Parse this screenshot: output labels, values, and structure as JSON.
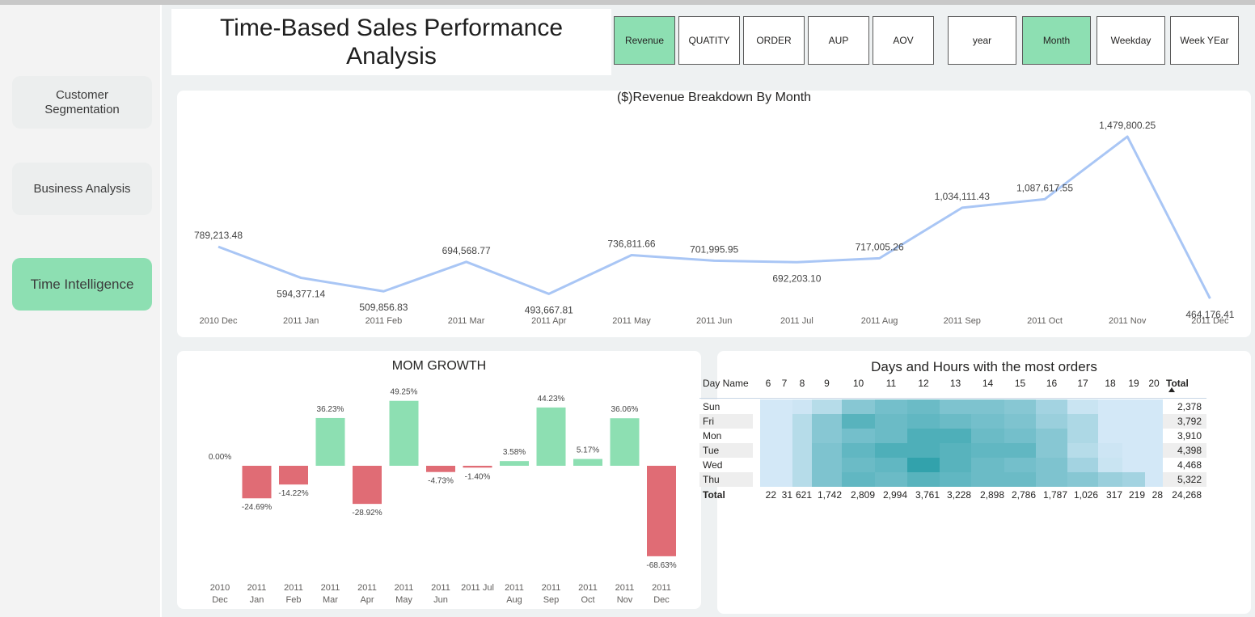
{
  "nav": {
    "items": [
      {
        "label_line1": "Customer",
        "label_line2": "Segmentation"
      },
      {
        "label_line1": "Business Analysis",
        "label_line2": ""
      },
      {
        "label_line1": "Time Intelligence",
        "label_line2": ""
      }
    ],
    "active_index": 2
  },
  "header": {
    "title_line1": "Time-Based Sales Performance",
    "title_line2": "Analysis"
  },
  "metric_buttons": [
    {
      "label": "Revenue",
      "active": true
    },
    {
      "label": "QUATITY",
      "active": false
    },
    {
      "label": "ORDER",
      "active": false
    },
    {
      "label": "AUP",
      "active": false
    },
    {
      "label": "AOV",
      "active": false
    }
  ],
  "period_buttons": [
    {
      "label": "year",
      "active": false
    },
    {
      "label": "Month",
      "active": true
    },
    {
      "label": "Weekday",
      "active": false
    },
    {
      "label": "Week YEar",
      "active": false
    }
  ],
  "colors": {
    "accent_green": "#8ddfb2",
    "line_blue": "#a9c6f5",
    "negative_red": "#e06c75",
    "heat_base": "#dcecfb",
    "heat_dark": "#1f9aa3"
  },
  "chart_data": [
    {
      "type": "line",
      "title": "($)Revenue Breakdown By Month",
      "categories": [
        "2010 Dec",
        "2011 Jan",
        "2011 Feb",
        "2011 Mar",
        "2011 Apr",
        "2011 May",
        "2011 Jun",
        "2011 Jul",
        "2011 Aug",
        "2011 Sep",
        "2011 Oct",
        "2011 Nov",
        "2011 Dec"
      ],
      "values": [
        789213.48,
        594377.14,
        509856.83,
        694568.77,
        493667.81,
        736811.66,
        701995.95,
        692203.1,
        717005.26,
        1034111.43,
        1087617.55,
        1479800.25,
        464176.41
      ],
      "labels": [
        "789,213.48",
        "594,377.14",
        "509,856.83",
        "694,568.77",
        "493,667.81",
        "736,811.66",
        "701,995.95",
        "692,203.10",
        "717,005.26",
        "1,034,111.43",
        "1,087,617.55",
        "1,479,800.25",
        "464,176.41"
      ],
      "color": "#a9c6f5"
    },
    {
      "type": "bar",
      "title": "MOM GROWTH",
      "categories": [
        [
          "2010",
          "Dec"
        ],
        [
          "2011",
          "Jan"
        ],
        [
          "2011",
          "Feb"
        ],
        [
          "2011",
          "Mar"
        ],
        [
          "2011",
          "Apr"
        ],
        [
          "2011",
          "May"
        ],
        [
          "2011",
          "Jun"
        ],
        [
          "2011 Jul",
          ""
        ],
        [
          "2011",
          "Aug"
        ],
        [
          "2011",
          "Sep"
        ],
        [
          "2011",
          "Oct"
        ],
        [
          "2011",
          "Nov"
        ],
        [
          "2011",
          "Dec"
        ]
      ],
      "values": [
        0.0,
        -24.69,
        -14.22,
        36.23,
        -28.92,
        49.25,
        -4.73,
        -1.4,
        3.58,
        44.23,
        5.17,
        36.06,
        -68.63
      ],
      "labels": [
        "0.00%",
        "-24.69%",
        "-14.22%",
        "36.23%",
        "-28.92%",
        "49.25%",
        "-4.73%",
        "-1.40%",
        "3.58%",
        "44.23%",
        "5.17%",
        "36.06%",
        "-68.63%"
      ]
    },
    {
      "type": "heatmap",
      "title": "Days and Hours with the most orders",
      "corner_label": "Day Name",
      "total_label": "Total",
      "hours": [
        "6",
        "7",
        "8",
        "9",
        "10",
        "11",
        "12",
        "13",
        "14",
        "15",
        "16",
        "17",
        "18",
        "19",
        "20"
      ],
      "rows": [
        {
          "day": "Sun",
          "total": "2,378",
          "levels": [
            0.05,
            0.05,
            0.08,
            0.2,
            0.45,
            0.55,
            0.6,
            0.5,
            0.5,
            0.45,
            0.3,
            0.1,
            0.05,
            0.05,
            0.05
          ]
        },
        {
          "day": "Fri",
          "total": "3,792",
          "levels": [
            0.05,
            0.05,
            0.2,
            0.45,
            0.7,
            0.6,
            0.65,
            0.6,
            0.55,
            0.5,
            0.35,
            0.25,
            0.05,
            0.05,
            0.05
          ]
        },
        {
          "day": "Mon",
          "total": "3,910",
          "levels": [
            0.05,
            0.05,
            0.2,
            0.45,
            0.55,
            0.6,
            0.75,
            0.75,
            0.6,
            0.55,
            0.45,
            0.25,
            0.05,
            0.05,
            0.05
          ]
        },
        {
          "day": "Tue",
          "total": "4,398",
          "levels": [
            0.05,
            0.05,
            0.2,
            0.5,
            0.65,
            0.75,
            0.75,
            0.7,
            0.65,
            0.65,
            0.45,
            0.2,
            0.08,
            0.05,
            0.05
          ]
        },
        {
          "day": "Wed",
          "total": "4,468",
          "levels": [
            0.05,
            0.05,
            0.2,
            0.5,
            0.6,
            0.65,
            0.9,
            0.7,
            0.6,
            0.55,
            0.5,
            0.3,
            0.1,
            0.05,
            0.05
          ]
        },
        {
          "day": "Thu",
          "total": "5,322",
          "levels": [
            0.05,
            0.05,
            0.2,
            0.5,
            0.65,
            0.6,
            0.7,
            0.65,
            0.6,
            0.6,
            0.5,
            0.45,
            0.35,
            0.3,
            0.05
          ]
        }
      ],
      "column_totals": [
        "22",
        "31",
        "621",
        "1,742",
        "2,809",
        "2,994",
        "3,761",
        "3,228",
        "2,898",
        "2,786",
        "1,787",
        "1,026",
        "317",
        "219",
        "28"
      ],
      "grand_total": "24,268"
    }
  ]
}
